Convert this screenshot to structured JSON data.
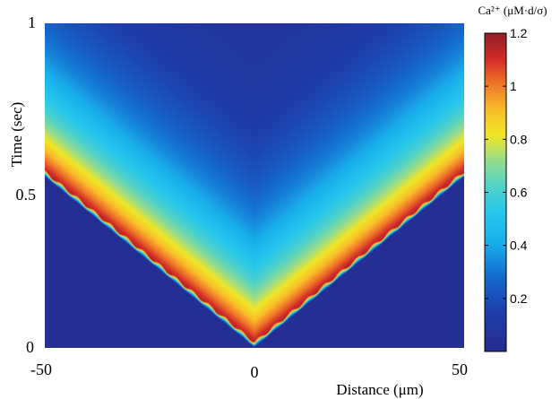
{
  "chart_data": {
    "type": "heatmap",
    "title": "",
    "xlabel": "Distance (μm)",
    "ylabel": "Time (sec)",
    "xlim": [
      -50,
      50
    ],
    "ylim": [
      0,
      1
    ],
    "x_ticks": [
      "-50",
      "0",
      "50"
    ],
    "y_ticks": [
      "0",
      "0.5",
      "1"
    ],
    "colorbar": {
      "label": "Ca²⁺ (μM·d/σ)",
      "min": 0,
      "max": 1.2,
      "ticks": [
        "0.2",
        "0.4",
        "0.6",
        "0.8",
        "1",
        "1.2"
      ],
      "colormap": "jet"
    },
    "wave": {
      "description_free": true,
      "origin_x": 0,
      "origin_t": 0,
      "speed_um_per_s": 95,
      "reaches_edges_at_t": 0.53,
      "front_peak": 1.15,
      "decay_time_s": 0.28,
      "baseline": 0.02
    }
  },
  "colors": {
    "background": "#ffffff",
    "axis": "#000000"
  }
}
